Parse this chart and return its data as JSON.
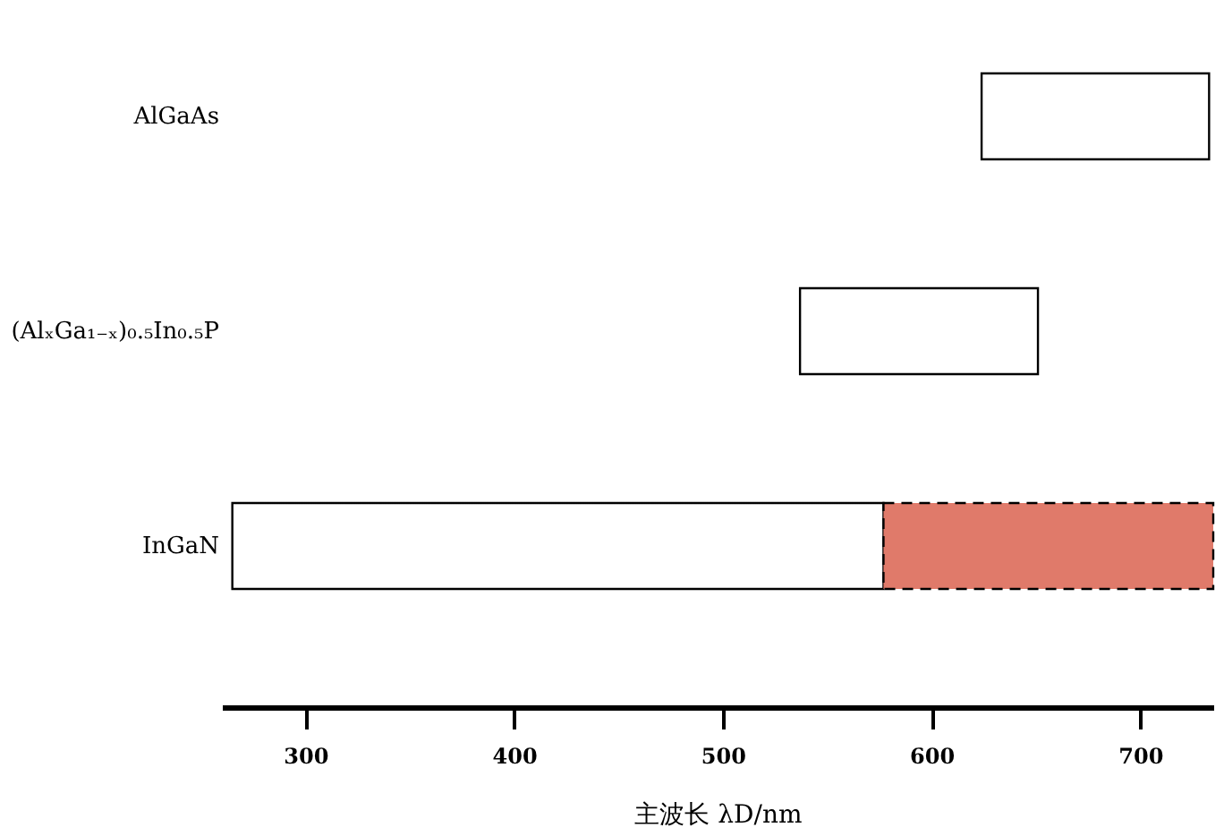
{
  "chart_data": {
    "type": "bar",
    "orientation": "horizontal",
    "categories": [
      "AlGaAs",
      "(AlₓGa₁₋ₓ)₀.₅In₀.₅P",
      "InGaN"
    ],
    "series": [
      {
        "color": "#ffffff",
        "base": [
          624,
          537,
          265
        ],
        "values": [
          109,
          114,
          312
        ],
        "line_style": "solid"
      },
      {
        "color": "#e07a6a",
        "base": [
          null,
          null,
          577
        ],
        "values": [
          null,
          null,
          158
        ],
        "line_style": "dashed"
      }
    ],
    "xlabel": "主波长 λD/nm",
    "xlim": [
      260,
      735
    ],
    "xticks": [
      300,
      400,
      500,
      600,
      700
    ],
    "grid": false
  }
}
